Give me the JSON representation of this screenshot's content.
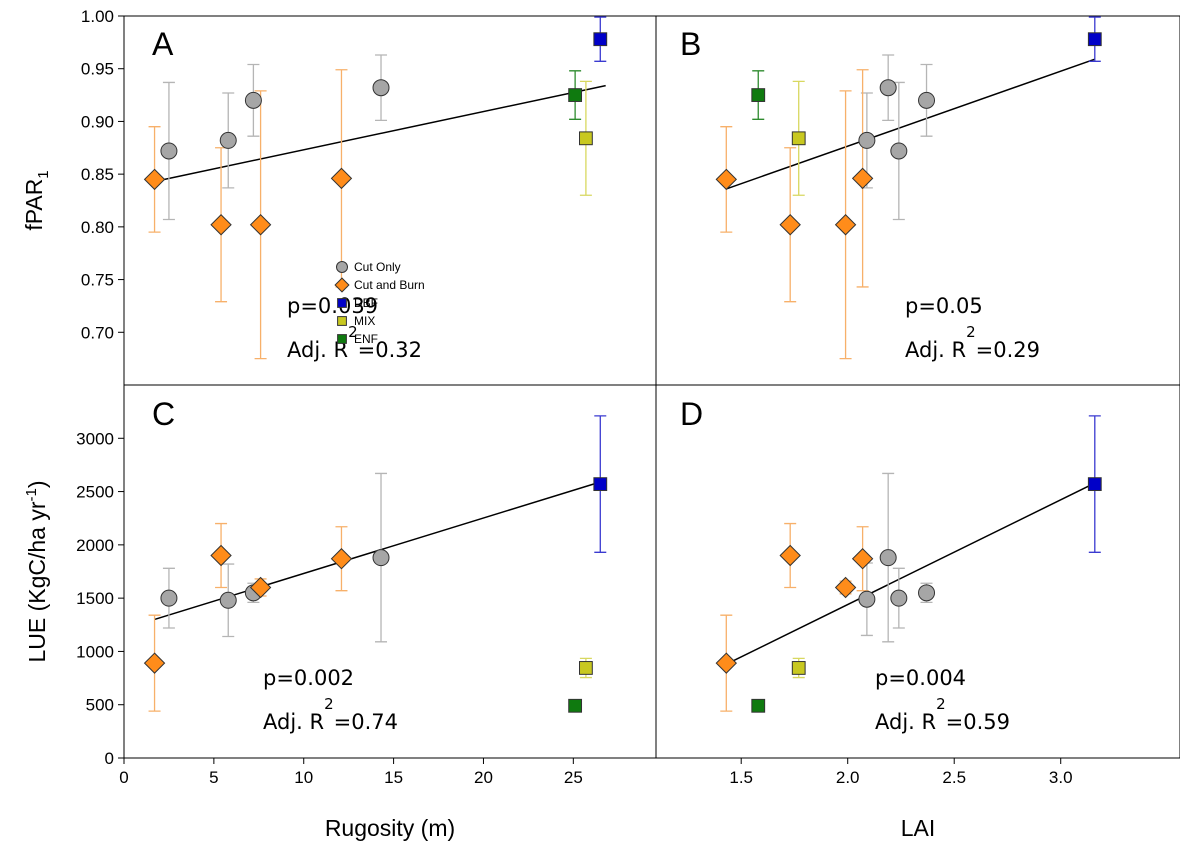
{
  "chart_data": [
    {
      "type": "scatter",
      "label": "A",
      "xlim": [
        0,
        29.6
      ],
      "ylim": [
        0.65,
        1.0
      ],
      "yticks": [
        {
          "value": 0.7,
          "label": "0.70"
        },
        {
          "value": 0.75,
          "label": "0.75"
        },
        {
          "value": 0.8,
          "label": "0.80"
        },
        {
          "value": 0.85,
          "label": "0.85"
        },
        {
          "value": 0.9,
          "label": "0.90"
        },
        {
          "value": 0.95,
          "label": "0.95"
        },
        {
          "value": 1.0,
          "label": "1.00"
        }
      ],
      "ylabel": {
        "text": "fPAR",
        "sub": "1"
      },
      "legend": "lower center",
      "series": [
        {
          "name": "Cut Only",
          "marker": "circle",
          "color": "#a6a6a6",
          "error_color": "#b5b5b5",
          "x": [
            2.5,
            5.8,
            7.2,
            14.3
          ],
          "y": [
            0.872,
            0.882,
            0.92,
            0.932
          ],
          "errors": [
            0.065,
            0.045,
            0.034,
            0.031
          ]
        },
        {
          "name": "Cut and Burn",
          "marker": "diamond",
          "color": "#ff8c1a",
          "error_color": "#f7b06a",
          "x": [
            1.7,
            5.4,
            7.6,
            12.1
          ],
          "y": [
            0.845,
            0.802,
            0.802,
            0.846
          ],
          "errors": [
            0.05,
            0.073,
            0.127,
            0.103
          ]
        },
        {
          "name": "DBF",
          "marker": "square",
          "color": "#0000c8",
          "error_color": "#3a3ad0",
          "x": [
            26.5
          ],
          "y": [
            0.978
          ],
          "errors": [
            0.021
          ]
        },
        {
          "name": "MIX",
          "marker": "square",
          "color": "#c8c820",
          "error_color": "#d8d860",
          "x": [
            25.7
          ],
          "y": [
            0.884
          ],
          "errors": [
            0.054
          ]
        },
        {
          "name": "ENF",
          "marker": "square",
          "color": "#0f7a0f",
          "error_color": "#2e8b2e",
          "x": [
            25.1
          ],
          "y": [
            0.925
          ],
          "errors": [
            0.023
          ]
        }
      ],
      "fit": {
        "x": [
          1.7,
          26.8
        ],
        "y": [
          0.843,
          0.934
        ]
      },
      "annotation": {
        "p": "p=0.039",
        "r": "Adj. R",
        "sup": "2",
        "value": "=0.32"
      }
    },
    {
      "type": "scatter",
      "label": "B",
      "xlim": [
        1.1,
        3.56
      ],
      "ylim": [
        0.65,
        1.0
      ],
      "series": [
        {
          "marker": "circle",
          "color": "#a6a6a6",
          "error_color": "#b5b5b5",
          "x": [
            2.19,
            2.37,
            2.09,
            2.24
          ],
          "y": [
            0.932,
            0.92,
            0.882,
            0.872
          ],
          "errors": [
            0.031,
            0.034,
            0.045,
            0.065
          ]
        },
        {
          "marker": "diamond",
          "color": "#ff8c1a",
          "error_color": "#f7b06a",
          "x": [
            1.43,
            1.73,
            1.99,
            2.07
          ],
          "y": [
            0.845,
            0.802,
            0.802,
            0.846
          ],
          "errors": [
            0.05,
            0.073,
            0.127,
            0.103
          ]
        },
        {
          "marker": "square",
          "color": "#0000c8",
          "error_color": "#3a3ad0",
          "x": [
            3.16
          ],
          "y": [
            0.978
          ],
          "errors": [
            0.021
          ]
        },
        {
          "marker": "square",
          "color": "#c8c820",
          "error_color": "#d8d860",
          "x": [
            1.77
          ],
          "y": [
            0.884
          ],
          "errors": [
            0.054
          ]
        },
        {
          "marker": "square",
          "color": "#0f7a0f",
          "error_color": "#2e8b2e",
          "x": [
            1.58
          ],
          "y": [
            0.925
          ],
          "errors": [
            0.023
          ]
        }
      ],
      "fit": {
        "x": [
          1.43,
          3.16
        ],
        "y": [
          0.836,
          0.959
        ]
      },
      "annotation": {
        "p": "p=0.05",
        "r": "Adj. R",
        "sup": "2",
        "value": "=0.29"
      }
    },
    {
      "type": "scatter",
      "label": "C",
      "xlim": [
        0,
        29.6
      ],
      "ylim": [
        0,
        3500
      ],
      "xticks": [
        0,
        5,
        10,
        15,
        20,
        25
      ],
      "yticks": [
        0,
        500,
        1000,
        1500,
        2000,
        2500,
        3000
      ],
      "xlabel": "Rugosity (m)",
      "ylabel": {
        "text": "LUE (KgC/ha yr",
        "sup": "-1",
        "tail": ")"
      },
      "series": [
        {
          "marker": "circle",
          "color": "#a6a6a6",
          "error_color": "#b5b5b5",
          "x": [
            2.5,
            5.8,
            7.2,
            14.3
          ],
          "y": [
            1500,
            1480,
            1550,
            1880
          ],
          "errors": [
            280,
            340,
            90,
            790
          ]
        },
        {
          "marker": "diamond",
          "color": "#ff8c1a",
          "error_color": "#f7b06a",
          "x": [
            1.7,
            5.4,
            7.6,
            12.1
          ],
          "y": [
            890,
            1900,
            1600,
            1870
          ],
          "errors": [
            450,
            300,
            80,
            300
          ]
        },
        {
          "marker": "square",
          "color": "#0000c8",
          "error_color": "#3a3ad0",
          "x": [
            26.5
          ],
          "y": [
            2570
          ],
          "errors": [
            640
          ]
        },
        {
          "marker": "square",
          "color": "#c8c820",
          "error_color": "#d8d860",
          "x": [
            25.7
          ],
          "y": [
            845
          ],
          "errors": [
            90
          ]
        },
        {
          "marker": "square",
          "color": "#0f7a0f",
          "error_color": "#2e8b2e",
          "x": [
            25.1
          ],
          "y": [
            490
          ],
          "errors": [
            null
          ]
        }
      ],
      "fit": {
        "x": [
          1.7,
          26.5
        ],
        "y": [
          1300,
          2590
        ]
      },
      "annotation": {
        "p": "p=0.002",
        "r": "Adj. R",
        "sup": "2",
        "value": "=0.74"
      }
    },
    {
      "type": "scatter",
      "label": "D",
      "xlim": [
        1.1,
        3.56
      ],
      "ylim": [
        0,
        3500
      ],
      "xticks": [
        {
          "value": 1.5,
          "label": "1.5"
        },
        {
          "value": 2.0,
          "label": "2.0"
        },
        {
          "value": 2.5,
          "label": "2.5"
        },
        {
          "value": 3.0,
          "label": "3.0"
        }
      ],
      "xlabel": "LAI",
      "series": [
        {
          "marker": "circle",
          "color": "#a6a6a6",
          "error_color": "#b5b5b5",
          "x": [
            2.09,
            2.24,
            2.37,
            2.19
          ],
          "y": [
            1490,
            1500,
            1550,
            1880
          ],
          "errors": [
            340,
            280,
            90,
            790
          ]
        },
        {
          "marker": "diamond",
          "color": "#ff8c1a",
          "error_color": "#f7b06a",
          "x": [
            1.43,
            1.73,
            1.99,
            2.07
          ],
          "y": [
            890,
            1900,
            1600,
            1870
          ],
          "errors": [
            450,
            300,
            60,
            300
          ]
        },
        {
          "marker": "square",
          "color": "#0000c8",
          "error_color": "#3a3ad0",
          "x": [
            3.16
          ],
          "y": [
            2570
          ],
          "errors": [
            640
          ]
        },
        {
          "marker": "square",
          "color": "#c8c820",
          "error_color": "#d8d860",
          "x": [
            1.77
          ],
          "y": [
            845
          ],
          "errors": [
            90
          ]
        },
        {
          "marker": "square",
          "color": "#0f7a0f",
          "error_color": "#2e8b2e",
          "x": [
            1.58
          ],
          "y": [
            490
          ],
          "errors": [
            null
          ]
        }
      ],
      "fit": {
        "x": [
          1.43,
          3.16
        ],
        "y": [
          880,
          2580
        ]
      },
      "annotation": {
        "p": "p=0.004",
        "r": "Adj. R",
        "sup": "2",
        "value": "=0.59"
      }
    }
  ]
}
